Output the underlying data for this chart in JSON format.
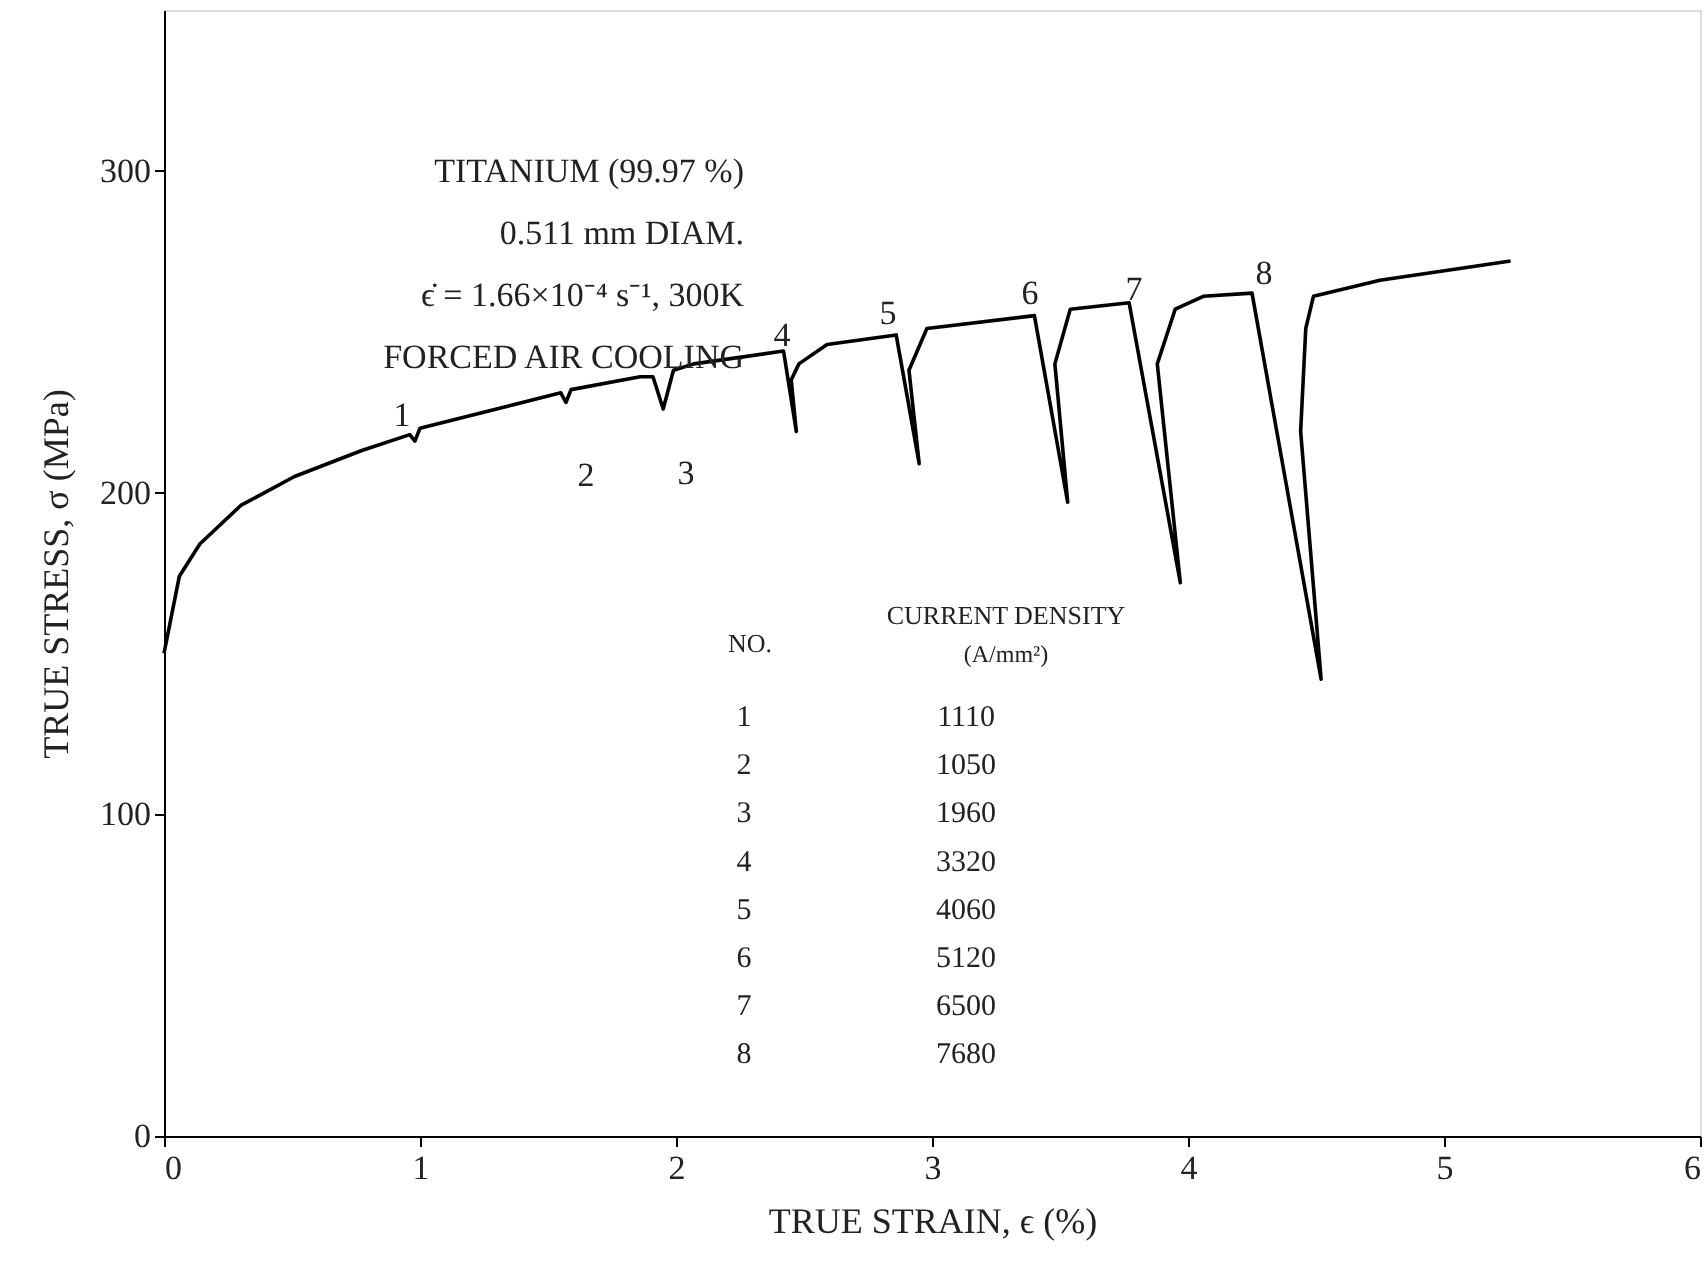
{
  "chart_data": {
    "type": "line",
    "xlabel": "TRUE STRAIN, ϵ (%)",
    "ylabel": "TRUE STRESS, σ (MPa)",
    "xlim": [
      0,
      6
    ],
    "ylim": [
      0,
      350
    ],
    "xticks": [
      0,
      1,
      2,
      3,
      4,
      5,
      6
    ],
    "yticks": [
      0,
      100,
      200,
      300
    ],
    "grid": false,
    "series": [
      {
        "color": "#000000",
        "x": [
          0,
          0.06,
          0.14,
          0.3,
          0.51,
          0.77,
          0.96,
          0.98,
          1.0,
          1.55,
          1.57,
          1.59,
          1.86,
          1.91,
          1.95,
          1.99,
          2.07,
          2.42,
          2.47,
          2.45,
          2.48,
          2.59,
          2.86,
          2.95,
          2.91,
          2.98,
          3.4,
          3.53,
          3.48,
          3.54,
          3.77,
          3.97,
          3.88,
          3.95,
          4.06,
          4.25,
          4.52,
          4.44,
          4.46,
          4.49,
          4.75,
          5.26
        ],
        "values": [
          150,
          174,
          184,
          196,
          205,
          213,
          218,
          216,
          220,
          231,
          228,
          232,
          236,
          236,
          226,
          238,
          240,
          244,
          219,
          235,
          240,
          246,
          249,
          209,
          238,
          251,
          255,
          197,
          240,
          257,
          259,
          172,
          240,
          257,
          261,
          262,
          142,
          219,
          251,
          261,
          266,
          272
        ]
      }
    ],
    "annotations": [
      "1",
      "2",
      "3",
      "4",
      "5",
      "6",
      "7",
      "8",
      "TITANIUM (99.97 %)",
      "0.511 mm DIAM.",
      "ϵ̇ = 1.66×10⁻⁴ s⁻¹, 300K",
      "FORCED AIR COOLING",
      "NO.",
      "CURRENT DENSITY",
      "(A/mm²)",
      "1",
      "1110",
      "2",
      "1050",
      "3",
      "1960",
      "4",
      "3320",
      "5",
      "4060",
      "6",
      "5120",
      "7",
      "6500",
      "8",
      "7680"
    ]
  }
}
